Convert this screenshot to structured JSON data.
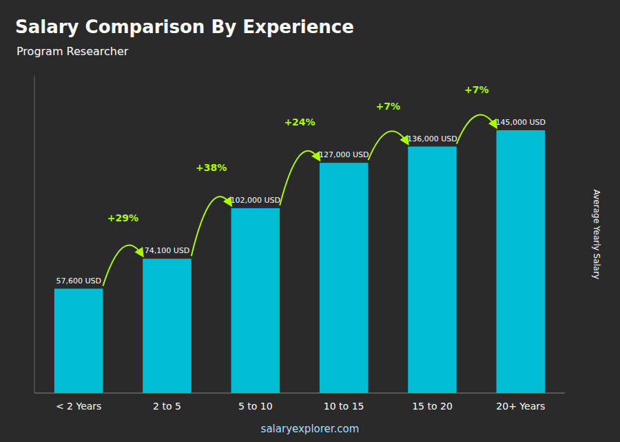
{
  "chart_data": {
    "type": "bar",
    "title": "Salary Comparison By Experience",
    "subtitle": "Program Researcher",
    "categories": [
      "< 2 Years",
      "2 to 5",
      "5 to 10",
      "10 to 15",
      "15 to 20",
      "20+ Years"
    ],
    "values": [
      57600,
      74100,
      102000,
      127000,
      136000,
      145000
    ],
    "value_labels": [
      "57,600 USD",
      "74,100 USD",
      "102,000 USD",
      "127,000 USD",
      "136,000 USD",
      "145,000 USD"
    ],
    "data_labels": true,
    "color": "#00bcd4",
    "ylabel": "Average Yearly Salary",
    "ylim": [
      0,
      175000
    ],
    "tick_labels": "x",
    "grid": false,
    "annotations": [
      {
        "text": "+29%",
        "color": "#aaff00"
      },
      {
        "text": "+38%",
        "color": "#aaff00"
      },
      {
        "text": "+24%",
        "color": "#aaff00"
      },
      {
        "text": "+7%",
        "color": "#aaff00"
      },
      {
        "text": "+7%",
        "color": "#aaff00"
      },
      {
        "text": "salaryexplorer.com",
        "color": "#aaddff"
      }
    ]
  }
}
